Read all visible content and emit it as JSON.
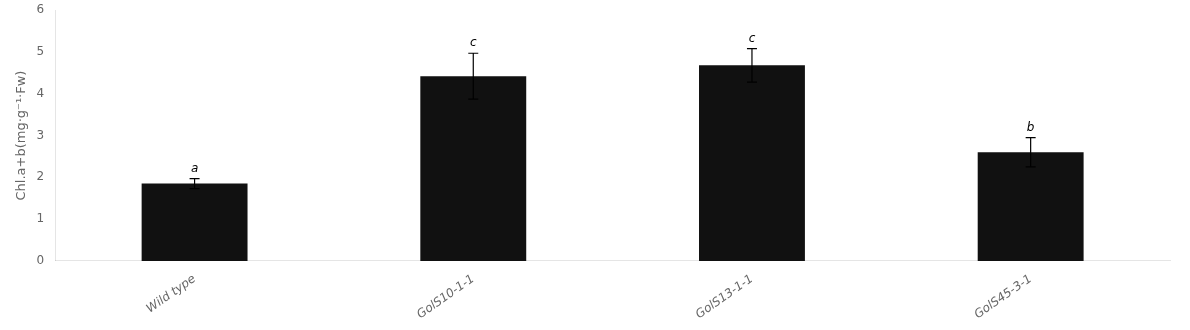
{
  "chart_data": {
    "type": "bar",
    "categories": [
      "Wild type",
      "GolS10-1-1",
      "GolS13-1-1",
      "GolS45-3-1"
    ],
    "values": [
      1.85,
      4.42,
      4.68,
      2.6
    ],
    "errors": [
      0.12,
      0.55,
      0.4,
      0.35
    ],
    "annotations": [
      "a",
      "c",
      "c",
      "b"
    ],
    "color": "#111111",
    "ylabel": "Chl.a+b(mg·g⁻¹·Fw)",
    "ylim": [
      0,
      6
    ],
    "yticks": [
      0,
      1,
      2,
      3,
      4,
      5,
      6
    ],
    "grid": false
  }
}
